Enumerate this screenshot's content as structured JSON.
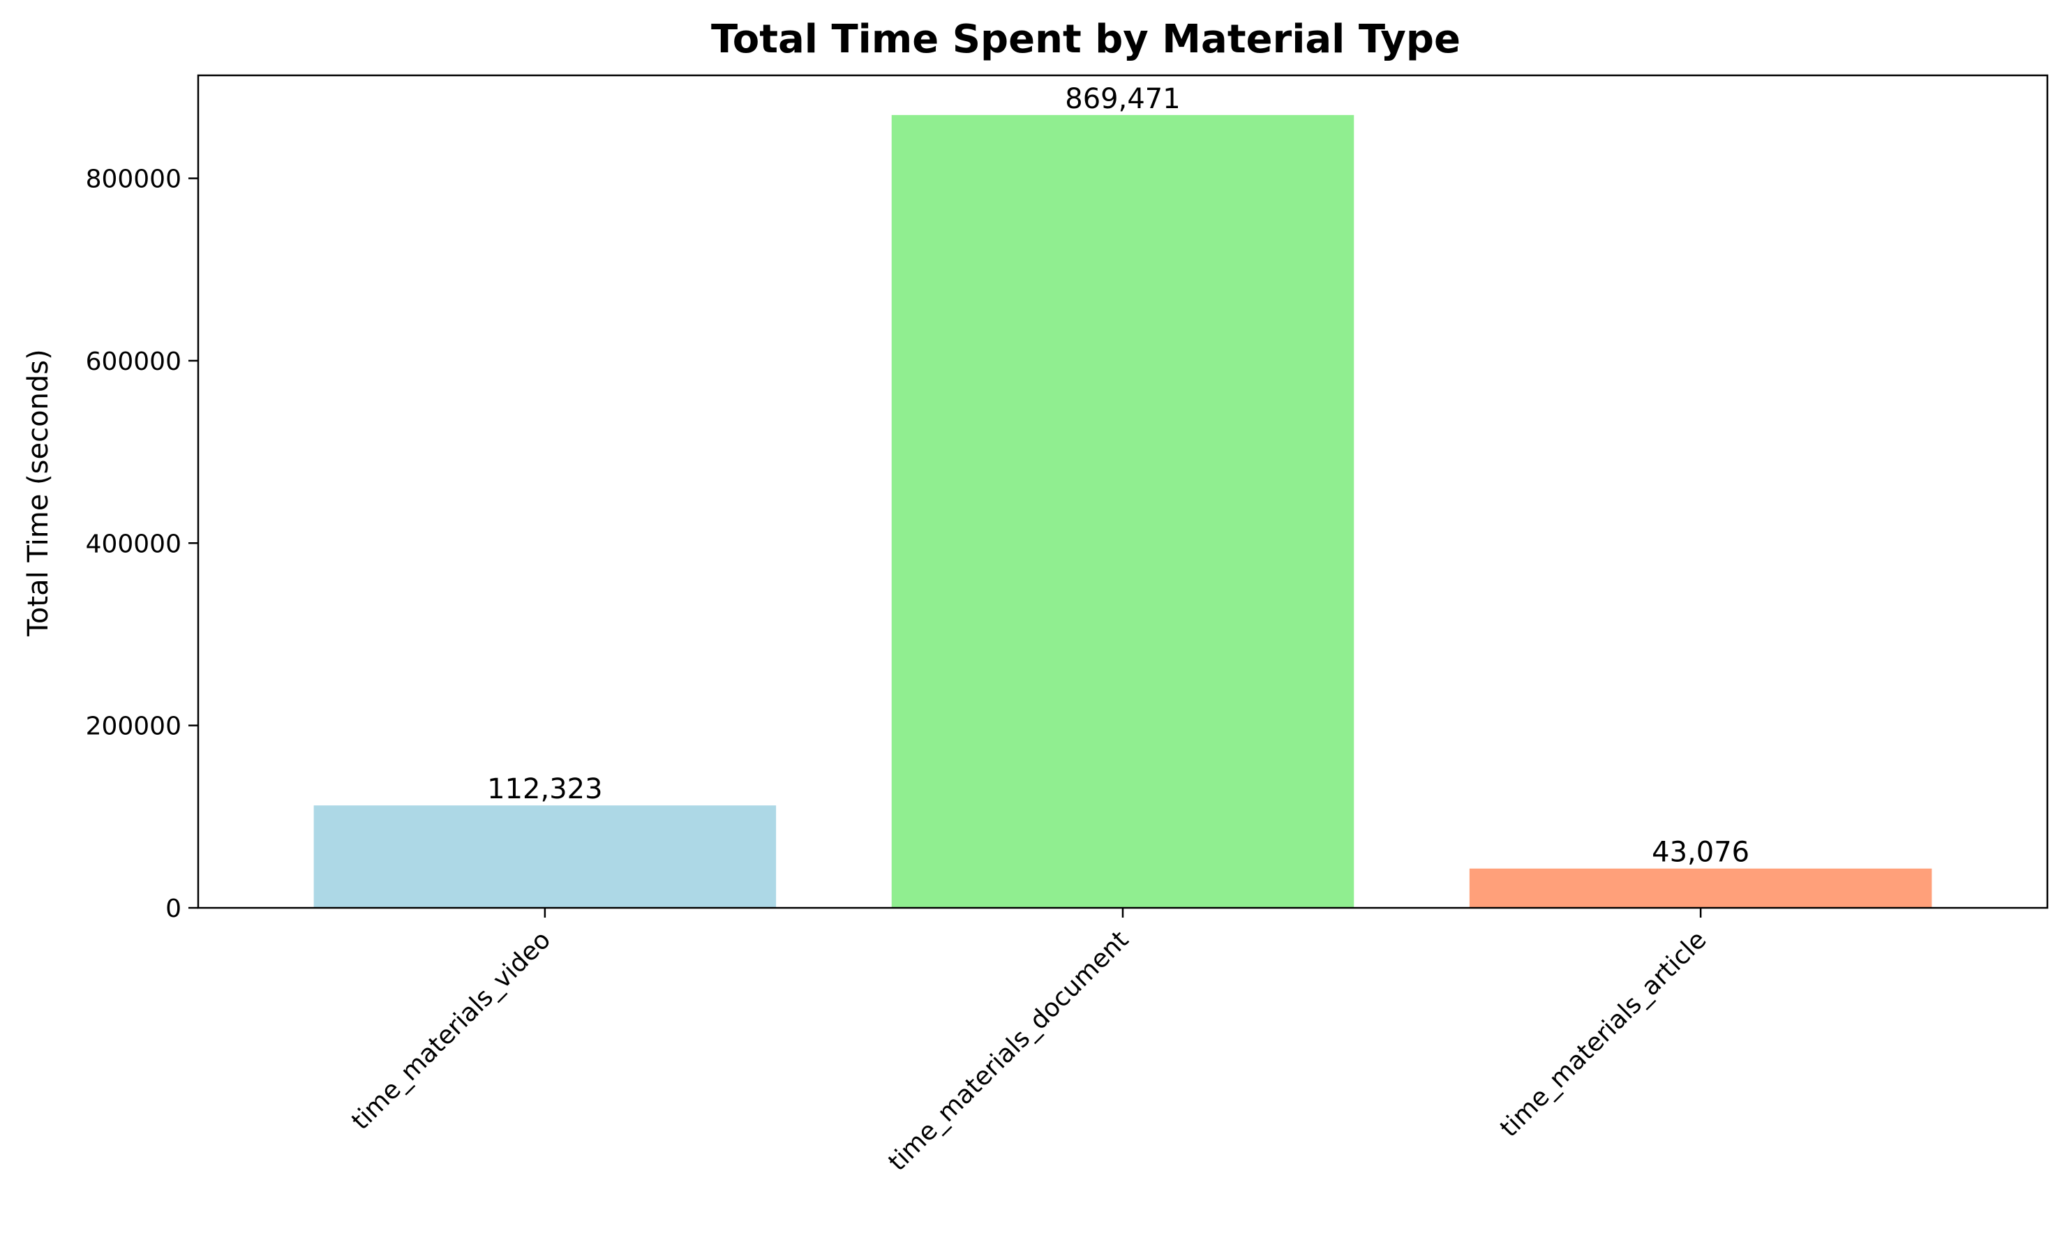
{
  "chart_data": {
    "type": "bar",
    "title": "Total Time Spent by Material Type",
    "xlabel": "",
    "ylabel": "Total Time (seconds)",
    "categories": [
      "time_materials_video",
      "time_materials_document",
      "time_materials_article"
    ],
    "values": [
      112323,
      869471,
      43076
    ],
    "value_labels": [
      "112,323",
      "869,471",
      "43,076"
    ],
    "colors": [
      "#add8e6",
      "#90ee90",
      "#ffa07a"
    ],
    "ylim": [
      0,
      912945
    ],
    "yticks": [
      0,
      200000,
      400000,
      600000,
      800000
    ],
    "ytick_labels": [
      "0",
      "200000",
      "400000",
      "600000",
      "800000"
    ],
    "grid": false,
    "legend": "none"
  }
}
